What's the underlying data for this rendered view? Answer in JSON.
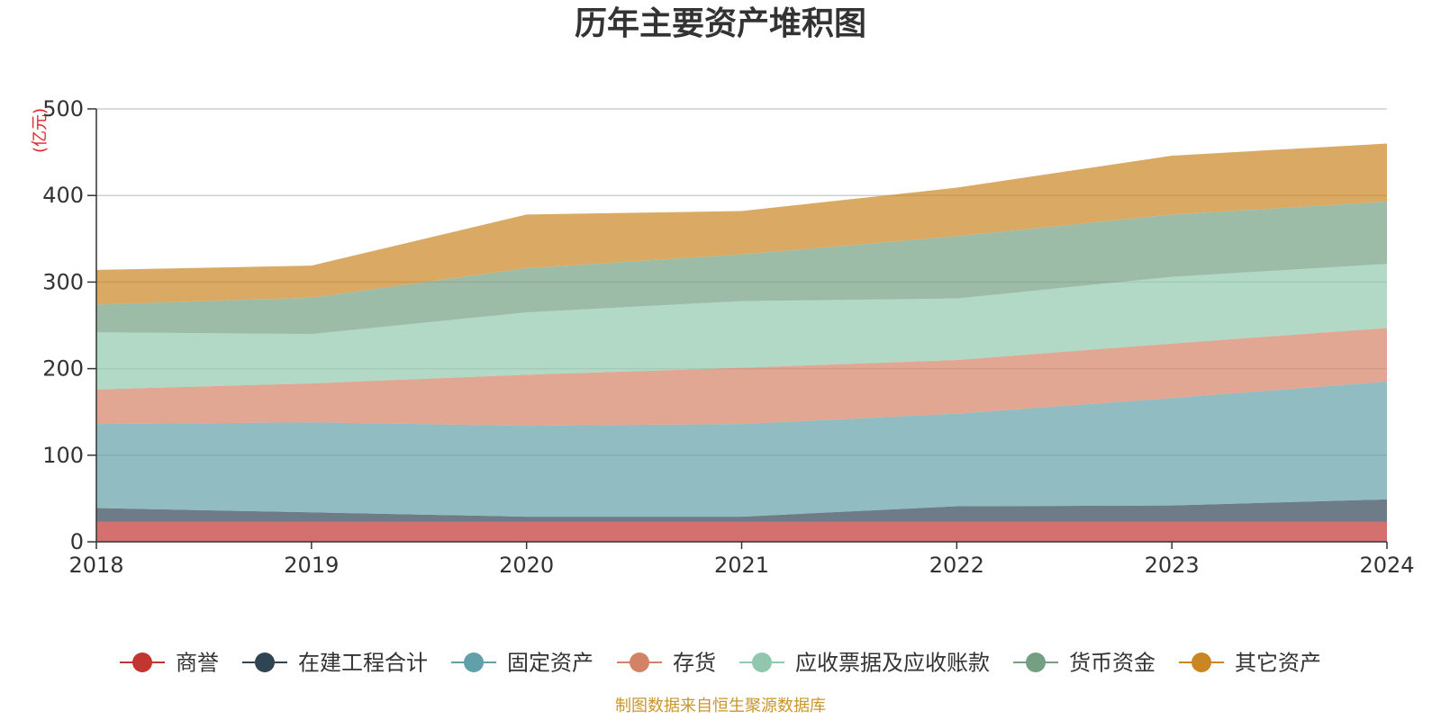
{
  "chart_data": {
    "type": "area",
    "stacked": true,
    "title": "历年主要资产堆积图",
    "unit_label": "(亿元)",
    "x": [
      "2018",
      "2019",
      "2020",
      "2021",
      "2022",
      "2023",
      "2024"
    ],
    "ylim": [
      0,
      500
    ],
    "yticks": [
      "0",
      "100",
      "200",
      "300",
      "400",
      "500"
    ],
    "grid": true,
    "legend_position": "bottom",
    "series": [
      {
        "name": "商誉",
        "color": "#c23531",
        "values": [
          23,
          23,
          23,
          23,
          23,
          23,
          23
        ]
      },
      {
        "name": "在建工程合计",
        "color": "#2f4554",
        "values": [
          16,
          11,
          6,
          6,
          18,
          19,
          26
        ]
      },
      {
        "name": "固定资产",
        "color": "#61a0a8",
        "values": [
          97,
          104,
          105,
          107,
          107,
          124,
          136
        ]
      },
      {
        "name": "存货",
        "color": "#d48265",
        "values": [
          40,
          45,
          59,
          65,
          62,
          63,
          62
        ]
      },
      {
        "name": "应收票据及应收账款",
        "color": "#91c7ae",
        "values": [
          66,
          57,
          72,
          77,
          71,
          77,
          74
        ]
      },
      {
        "name": "货币资金",
        "color": "#749f83",
        "values": [
          32,
          42,
          51,
          54,
          72,
          72,
          72
        ]
      },
      {
        "name": "其它资产",
        "color": "#ca8622",
        "values": [
          40,
          37,
          62,
          50,
          56,
          68,
          67
        ]
      }
    ],
    "source": "制图数据来自恒生聚源数据库"
  }
}
